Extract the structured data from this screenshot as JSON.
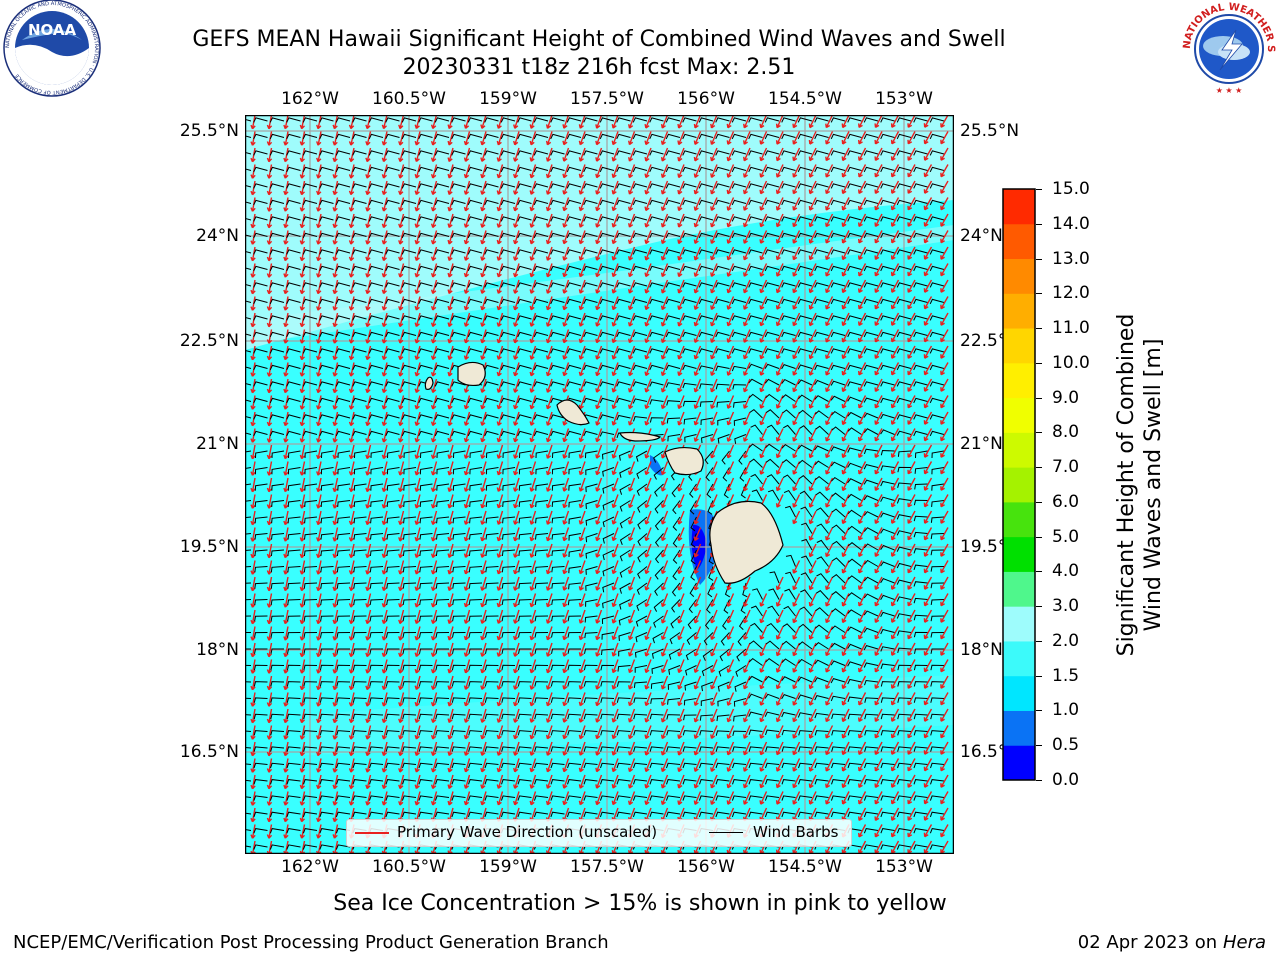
{
  "header": {
    "title_line1": "GEFS MEAN Hawaii Significant Height of Combined Wind Waves and Swell",
    "title_line2": "20230331 t18z 216h fcst   Max: 2.51"
  },
  "logos": {
    "noaa_text": "NOAA",
    "noaa_ring_text": "NATIONAL OCEANIC AND ATMOSPHERIC ADMINISTRATION · U.S. DEPARTMENT OF COMMERCE",
    "nws_ring_text": "NATIONAL WEATHER SERVICE"
  },
  "map": {
    "lon_labels": [
      "162°W",
      "160.5°W",
      "159°W",
      "157.5°W",
      "156°W",
      "154.5°W",
      "153°W"
    ],
    "lat_labels": [
      "25.5°N",
      "24°N",
      "22.5°N",
      "21°N",
      "19.5°N",
      "18°N",
      "16.5°N"
    ],
    "background_color": "#39ffff",
    "swell_color": "#9ffcfc",
    "land_color": "#efe9d6",
    "arrow_color": "#e8211f",
    "barb_color": "#000000",
    "max_value": 2.51
  },
  "colorbar": {
    "label_line1": "Significant Height of Combined",
    "label_line2": "Wind Waves and Swell [m]",
    "ticks": [
      "0.0",
      "0.5",
      "1.0",
      "1.5",
      "2.0",
      "3.0",
      "4.0",
      "5.0",
      "6.0",
      "7.0",
      "8.0",
      "9.0",
      "10.0",
      "11.0",
      "12.0",
      "13.0",
      "14.0",
      "15.0"
    ],
    "colors": [
      "#0000ff",
      "#0a73f5",
      "#00e6ff",
      "#3cfafa",
      "#9efcfc",
      "#4ff78c",
      "#00e000",
      "#47e30d",
      "#a5f200",
      "#cdfa00",
      "#f0ff00",
      "#ffef00",
      "#ffd600",
      "#ffae00",
      "#ff8a00",
      "#ff5a00",
      "#ff2a00",
      "#ff0000"
    ]
  },
  "legend": {
    "primary_wave": "Primary Wave Direction (unscaled)",
    "wind_barbs": "Wind Barbs"
  },
  "footer": {
    "sea_ice_note": "Sea Ice Concentration > 15% is shown in pink to yellow",
    "branch": "NCEP/EMC/Verification Post Processing Product Generation Branch",
    "date_prefix": "02 Apr 2023 on ",
    "machine": "Hera"
  }
}
